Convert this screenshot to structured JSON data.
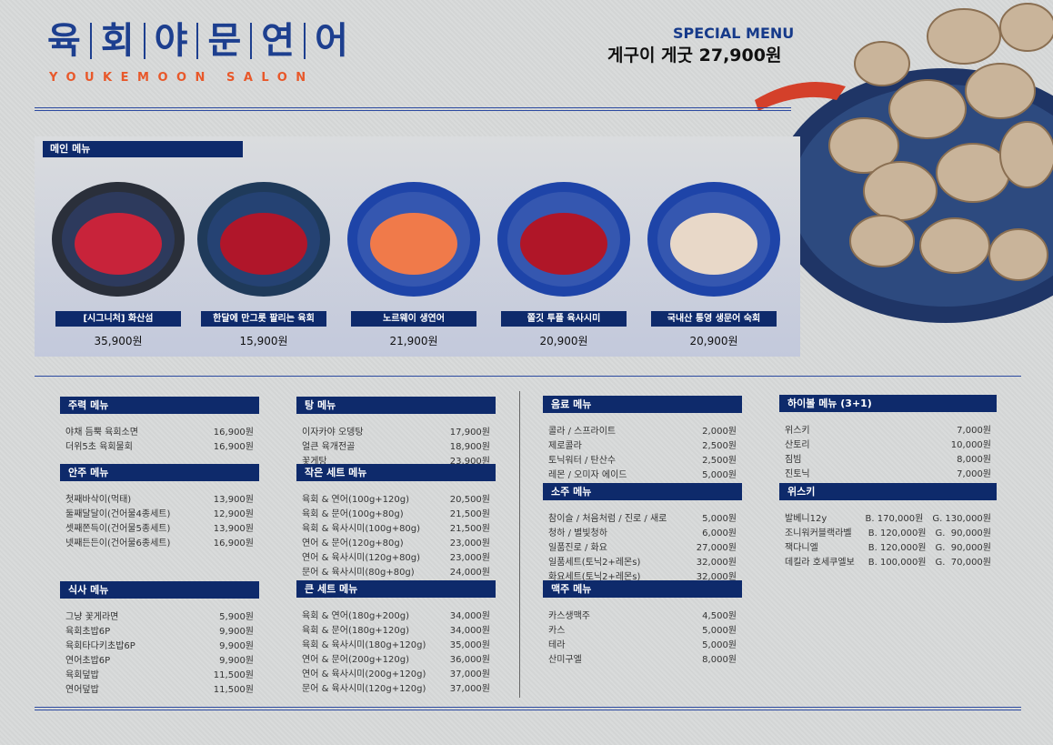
{
  "brand": {
    "chars": [
      "육",
      "회",
      "야",
      "문",
      "연",
      "어"
    ],
    "subtitle": "YOUKEMOON SALON"
  },
  "special": {
    "label": "SPECIAL MENU",
    "item": "게구이 게굿 27,900원"
  },
  "main_menu": {
    "title": "메인 메뉴",
    "dishes": [
      {
        "name": "[시그니처] 화산섬",
        "price": "35,900원"
      },
      {
        "name": "한달에 만그릇 팔리는 육회",
        "price": "15,900원"
      },
      {
        "name": "노르웨이 생연어",
        "price": "21,900원"
      },
      {
        "name": "쫄깃 투플 육사시미",
        "price": "20,900원"
      },
      {
        "name": "국내산 통영 생문어 숙회",
        "price": "20,900원"
      }
    ]
  },
  "sections": [
    {
      "title": "주력 메뉴",
      "items": [
        {
          "name": "야채 듬뿍 육회소면",
          "price": "16,900원"
        },
        {
          "name": "더위5초 육회물회",
          "price": "16,900원"
        }
      ]
    },
    {
      "title": "안주 메뉴",
      "items": [
        {
          "name": "첫째바삭이(먹태)",
          "price": "13,900원"
        },
        {
          "name": "둘째달달이(건어물4종세트)",
          "price": "12,900원"
        },
        {
          "name": "셋째쫀득이(건어물5종세트)",
          "price": "13,900원"
        },
        {
          "name": "넷째든든이(건어물6종세트)",
          "price": "16,900원"
        }
      ]
    },
    {
      "title": "식사 메뉴",
      "items": [
        {
          "name": "그냥 꽃게라면",
          "price": "5,900원"
        },
        {
          "name": "육회초밥6P",
          "price": "9,900원"
        },
        {
          "name": "육회타다키초밥6P",
          "price": "9,900원"
        },
        {
          "name": "연어초밥6P",
          "price": "9,900원"
        },
        {
          "name": "육회덮밥",
          "price": "11,500원"
        },
        {
          "name": "연어덮밥",
          "price": "11,500원"
        }
      ]
    },
    {
      "title": "탕 메뉴",
      "items": [
        {
          "name": "이자카야 오뎅탕",
          "price": "17,900원"
        },
        {
          "name": "얼큰 육개전골",
          "price": "18,900원"
        },
        {
          "name": "꽃게탕",
          "price": "23,900원"
        }
      ]
    },
    {
      "title": "작은 세트 메뉴",
      "items": [
        {
          "name": "육회 & 연어(100g+120g)",
          "price": "20,500원"
        },
        {
          "name": "육회 & 문어(100g+80g)",
          "price": "21,500원"
        },
        {
          "name": "육회 & 육사시미(100g+80g)",
          "price": "21,500원"
        },
        {
          "name": "연어 & 문어(120g+80g)",
          "price": "23,000원"
        },
        {
          "name": "연어 & 육사시미(120g+80g)",
          "price": "23,000원"
        },
        {
          "name": "문어 & 육사시미(80g+80g)",
          "price": "24,000원"
        }
      ]
    },
    {
      "title": "큰 세트 메뉴",
      "items": [
        {
          "name": "육회 & 연어(180g+200g)",
          "price": "34,000원"
        },
        {
          "name": "육회 & 문어(180g+120g)",
          "price": "34,000원"
        },
        {
          "name": "육회 & 육사시미(180g+120g)",
          "price": "35,000원"
        },
        {
          "name": "연어 & 문어(200g+120g)",
          "price": "36,000원"
        },
        {
          "name": "연어 & 육사시미(200g+120g)",
          "price": "37,000원"
        },
        {
          "name": "문어 & 육사시미(120g+120g)",
          "price": "37,000원"
        }
      ]
    },
    {
      "title": "음료 메뉴",
      "items": [
        {
          "name": "콜라 / 스프라이트",
          "price": "2,000원"
        },
        {
          "name": "제로콜라",
          "price": "2,500원"
        },
        {
          "name": "토닉워터 / 탄산수",
          "price": "2,500원"
        },
        {
          "name": "레몬 / 오미자 에이드",
          "price": "5,000원"
        }
      ]
    },
    {
      "title": "소주 메뉴",
      "items": [
        {
          "name": "참이슬 / 처음처럼 / 진로 / 새로",
          "price": "5,000원"
        },
        {
          "name": "청하 / 별빛청하",
          "price": "6,000원"
        },
        {
          "name": "일품진로 / 화요",
          "price": "27,000원"
        },
        {
          "name": "일품세트(토닉2+레몬s)",
          "price": "32,000원"
        },
        {
          "name": "화요세트(토닉2+레몬s)",
          "price": "32,000원"
        }
      ]
    },
    {
      "title": "맥주 메뉴",
      "items": [
        {
          "name": "카스생맥주",
          "price": "4,500원"
        },
        {
          "name": "카스",
          "price": "5,000원"
        },
        {
          "name": "테라",
          "price": "5,000원"
        },
        {
          "name": "산미구엘",
          "price": "8,000원"
        }
      ]
    },
    {
      "title": "하이볼 메뉴 (3+1)",
      "items": [
        {
          "name": "위스키",
          "price": "7,000원"
        },
        {
          "name": "산토리",
          "price": "10,000원"
        },
        {
          "name": "짐빔",
          "price": "8,000원"
        },
        {
          "name": "진토닉",
          "price": "7,000원"
        }
      ]
    }
  ],
  "whisky": {
    "title": "위스키",
    "items": [
      {
        "name": "발베니12y",
        "bottle": "B. 170,000원",
        "glass": "G. 130,000원"
      },
      {
        "name": "조니워커블랙라벨",
        "bottle": "B. 120,000원",
        "glass": "G.  90,000원"
      },
      {
        "name": "잭다니엘",
        "bottle": "B. 120,000원",
        "glass": "G.  90,000원"
      },
      {
        "name": "데킬라 호세쿠엘보",
        "bottle": "B. 100,000원",
        "glass": "G.  70,000원"
      }
    ]
  },
  "colors": {
    "navy": "#0e2a6b",
    "brand_blue": "#1d3f8f",
    "accent_orange": "#e8582a"
  }
}
